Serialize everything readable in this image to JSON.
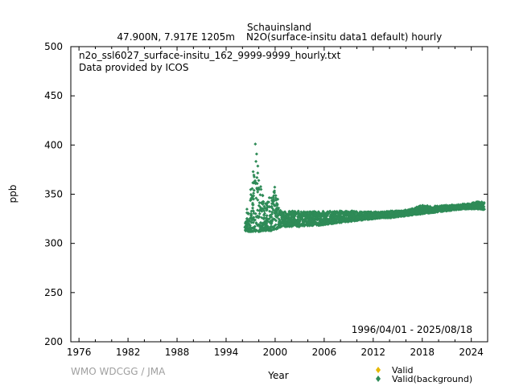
{
  "header": {
    "station": "Schauinsland",
    "location": "47.900N, 7.917E 1205m",
    "parameter": "N2O(surface-insitu data1 default) hourly"
  },
  "chart_data": {
    "type": "scatter",
    "file_label": "n2o_ssl6027_surface-insitu_162_9999-9999_hourly.txt",
    "provider": "Data provided by ICOS",
    "period": "1996/04/01 - 2025/08/18",
    "xlabel": "Year",
    "ylabel": "ppb",
    "xlim": [
      1975,
      2026
    ],
    "ylim": [
      200,
      500
    ],
    "x_ticks": [
      "1976",
      "1982",
      "1988",
      "1994",
      "2000",
      "2006",
      "2012",
      "2018",
      "2024"
    ],
    "y_ticks": [
      "200",
      "250",
      "300",
      "350",
      "400",
      "450",
      "500"
    ],
    "grid": false,
    "legend_position": "bottom-right",
    "legend": [
      {
        "label": "Valid",
        "color": "#e6b800"
      },
      {
        "label": "Valid(background)",
        "color": "#2e8b57"
      }
    ],
    "series": [
      {
        "name": "Valid(background)",
        "color": "#2e8b57",
        "envelope": [
          [
            1996.3,
            313,
            330
          ],
          [
            1996.8,
            312,
            345
          ],
          [
            1997.3,
            312,
            372
          ],
          [
            1997.6,
            312,
            405
          ],
          [
            1998.0,
            312,
            370
          ],
          [
            1998.5,
            313,
            350
          ],
          [
            1999.0,
            313,
            342
          ],
          [
            1999.5,
            313,
            352
          ],
          [
            2000.0,
            314,
            360
          ],
          [
            2000.5,
            316,
            337
          ],
          [
            2001.0,
            317,
            332
          ],
          [
            2002.0,
            317,
            333
          ],
          [
            2003.0,
            317,
            333
          ],
          [
            2004.0,
            318,
            332
          ],
          [
            2005.0,
            318,
            333
          ],
          [
            2006.0,
            319,
            333
          ],
          [
            2007.0,
            320,
            333
          ],
          [
            2008.0,
            321,
            333
          ],
          [
            2009.0,
            322,
            333
          ],
          [
            2010.0,
            323,
            333
          ],
          [
            2011.0,
            324,
            332
          ],
          [
            2012.0,
            325,
            332
          ],
          [
            2013.0,
            326,
            332
          ],
          [
            2014.0,
            326,
            333
          ],
          [
            2015.0,
            327,
            333
          ],
          [
            2016.0,
            328,
            334
          ],
          [
            2017.0,
            329,
            336
          ],
          [
            2018.0,
            330,
            339
          ],
          [
            2019.0,
            331,
            338
          ],
          [
            2020.0,
            332,
            338
          ],
          [
            2021.0,
            333,
            339
          ],
          [
            2022.0,
            334,
            339
          ],
          [
            2023.0,
            335,
            340
          ],
          [
            2024.0,
            335,
            341
          ],
          [
            2025.0,
            335,
            343
          ],
          [
            2025.6,
            334,
            342
          ]
        ]
      }
    ]
  },
  "footer": {
    "credit": "WMO WDCGG / JMA"
  }
}
